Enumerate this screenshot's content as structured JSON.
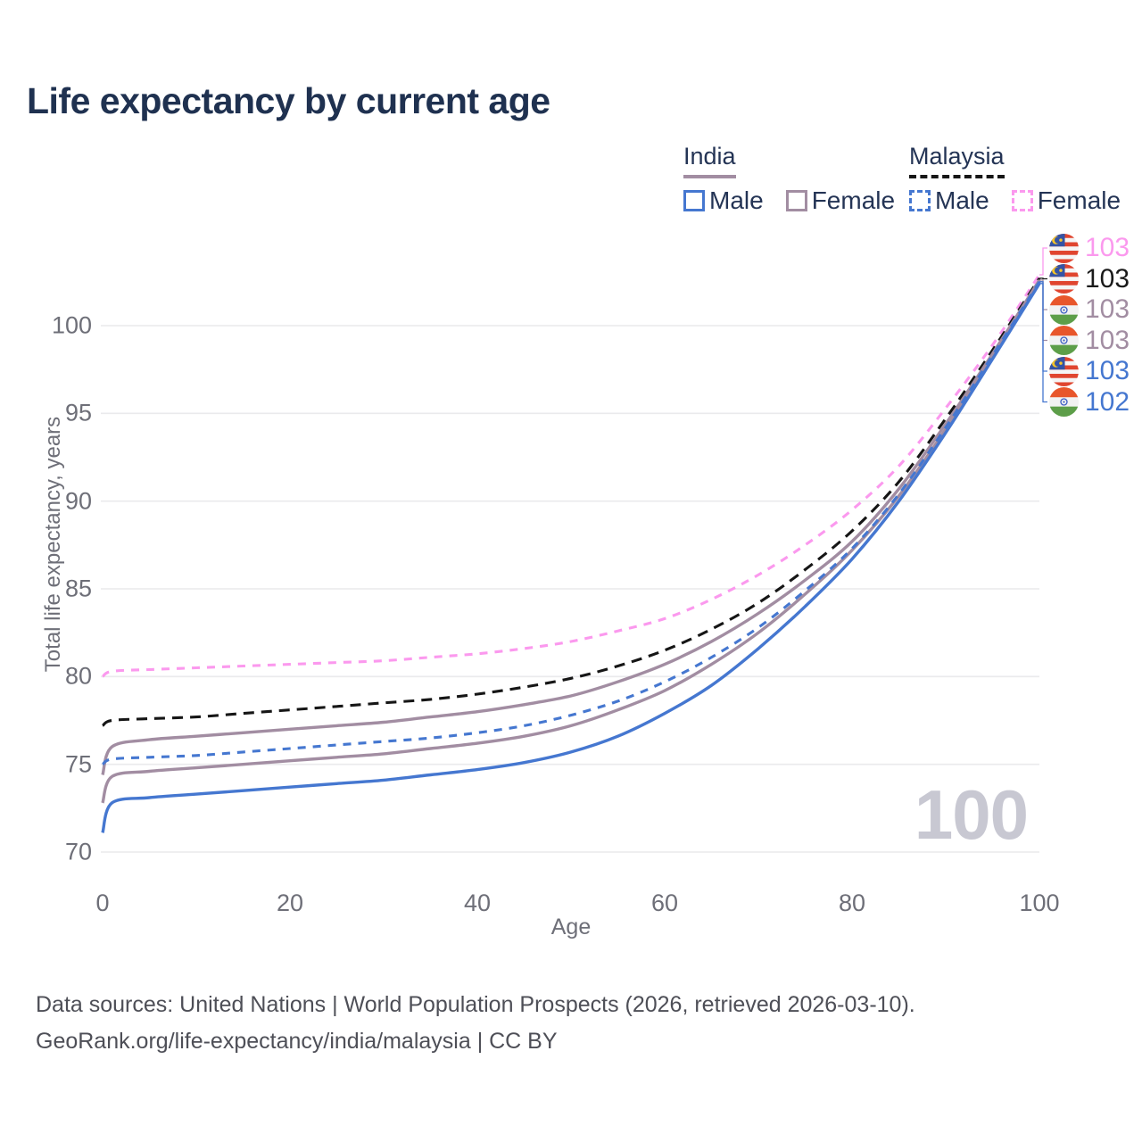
{
  "title": "Life expectancy by current age",
  "legend": {
    "groups": [
      {
        "label": "India",
        "line_style": "solid",
        "underline_color": "#a28da2",
        "items": [
          {
            "label": "Male",
            "color": "#4577d0"
          },
          {
            "label": "Female",
            "color": "#a28da2"
          }
        ]
      },
      {
        "label": "Malaysia",
        "line_style": "dashed",
        "underline_color": "#161616",
        "items": [
          {
            "label": "Male",
            "color": "#4577d0"
          },
          {
            "label": "Female",
            "color": "#fb99ee"
          }
        ]
      }
    ]
  },
  "chart_data": {
    "type": "line",
    "title": "Life expectancy by current age",
    "xlabel": "Age",
    "ylabel": "Total life expectancy, years",
    "xlim": [
      0,
      100
    ],
    "ylim": [
      70,
      103
    ],
    "xticks": [
      0,
      20,
      40,
      60,
      80,
      100
    ],
    "yticks": [
      70,
      75,
      80,
      85,
      90,
      95,
      100
    ],
    "grid": "horizontal",
    "x": [
      0,
      1,
      5,
      10,
      15,
      20,
      25,
      30,
      35,
      40,
      45,
      50,
      55,
      60,
      65,
      70,
      75,
      80,
      85,
      90,
      95,
      100
    ],
    "series": [
      {
        "name": "Malaysia Female",
        "country": "Malaysia",
        "sex": "female",
        "style": "dashed",
        "color": "#fb99ee",
        "values": [
          80.0,
          80.3,
          80.4,
          80.5,
          80.6,
          80.7,
          80.8,
          80.9,
          81.1,
          81.3,
          81.6,
          82.0,
          82.6,
          83.3,
          84.4,
          85.8,
          87.5,
          89.5,
          92.0,
          95.3,
          98.9,
          102.9
        ]
      },
      {
        "name": "Malaysia",
        "country": "Malaysia",
        "sex": "both",
        "style": "dashed",
        "color": "#161616",
        "values": [
          77.2,
          77.5,
          77.6,
          77.7,
          77.9,
          78.1,
          78.3,
          78.5,
          78.7,
          79.0,
          79.4,
          79.9,
          80.6,
          81.5,
          82.7,
          84.2,
          86.1,
          88.3,
          91.1,
          94.7,
          98.6,
          102.7
        ]
      },
      {
        "name": "India Female",
        "country": "India",
        "sex": "female",
        "style": "solid",
        "color": "#a28da2",
        "values": [
          74.4,
          76.0,
          76.4,
          76.6,
          76.8,
          77.0,
          77.2,
          77.4,
          77.7,
          78.0,
          78.4,
          78.9,
          79.7,
          80.7,
          82.0,
          83.6,
          85.5,
          87.7,
          90.7,
          94.4,
          98.4,
          102.6
        ]
      },
      {
        "name": "India",
        "country": "India",
        "sex": "both",
        "style": "solid",
        "color": "#a28da2",
        "values": [
          72.8,
          74.3,
          74.6,
          74.8,
          75.0,
          75.2,
          75.4,
          75.6,
          75.9,
          76.2,
          76.6,
          77.2,
          78.1,
          79.2,
          80.7,
          82.5,
          84.7,
          87.2,
          90.3,
          94.1,
          98.2,
          102.5
        ]
      },
      {
        "name": "Malaysia Male",
        "country": "Malaysia",
        "sex": "male",
        "style": "dashed",
        "color": "#4577d0",
        "values": [
          75.0,
          75.3,
          75.4,
          75.5,
          75.7,
          75.9,
          76.1,
          76.3,
          76.5,
          76.8,
          77.2,
          77.8,
          78.6,
          79.7,
          81.1,
          82.8,
          84.9,
          87.3,
          90.4,
          94.2,
          98.3,
          102.5
        ]
      },
      {
        "name": "India Male",
        "country": "India",
        "sex": "male",
        "style": "solid",
        "color": "#4577d0",
        "values": [
          71.1,
          72.8,
          73.1,
          73.3,
          73.5,
          73.7,
          73.9,
          74.1,
          74.4,
          74.7,
          75.1,
          75.7,
          76.6,
          77.9,
          79.5,
          81.6,
          84.0,
          86.7,
          90.0,
          93.9,
          98.1,
          102.4
        ]
      }
    ],
    "end_labels": [
      {
        "series": "Malaysia Female",
        "flag": "malaysia-flag-icon",
        "value": "103",
        "color": "#fb99ee"
      },
      {
        "series": "Malaysia",
        "flag": "malaysia-flag-icon",
        "value": "103",
        "color": "#1a1a1a"
      },
      {
        "series": "India Female",
        "flag": "india-flag-icon",
        "value": "103",
        "color": "#a28da2"
      },
      {
        "series": "India",
        "flag": "india-flag-icon",
        "value": "103",
        "color": "#a28da2"
      },
      {
        "series": "Malaysia Male",
        "flag": "malaysia-flag-icon",
        "value": "103",
        "color": "#4577d0"
      },
      {
        "series": "India Male",
        "flag": "india-flag-icon",
        "value": "102",
        "color": "#4577d0"
      }
    ],
    "legend_position": "top-right"
  },
  "watermark_age": "100",
  "footer": {
    "line1": "Data sources: United Nations | World Population Prospects (2026, retrieved 2026-03-10).",
    "line2": "GeoRank.org/life-expectancy/india/malaysia | CC BY"
  }
}
